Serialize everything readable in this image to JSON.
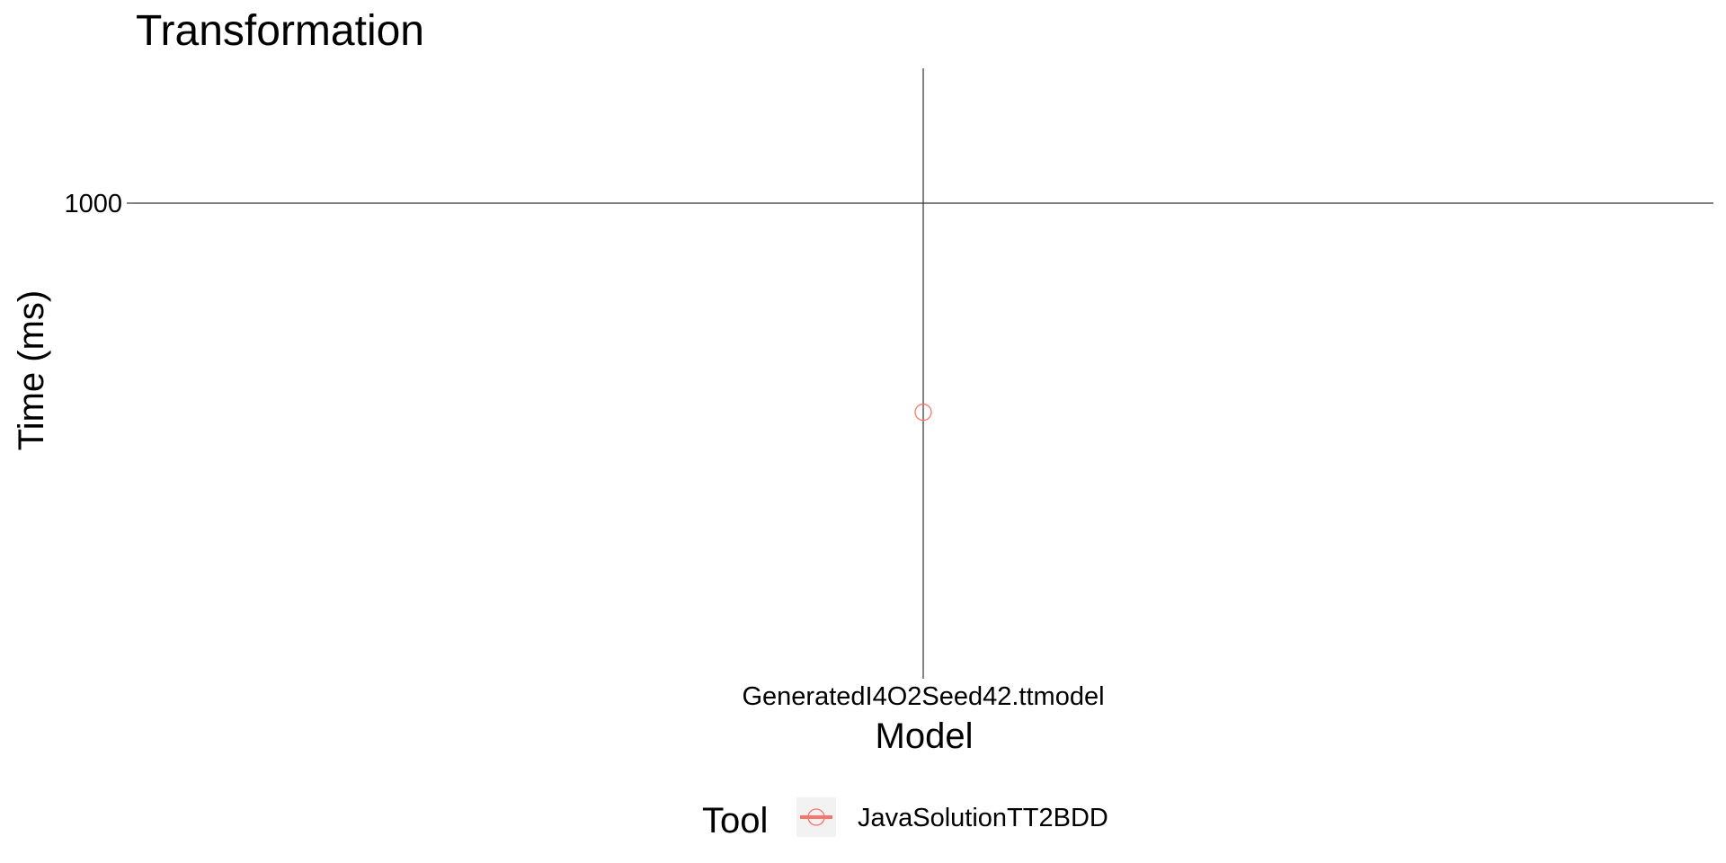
{
  "chart_data": {
    "type": "scatter",
    "title": "Transformation",
    "xlabel": "Model",
    "ylabel": "Time (ms)",
    "y_scale": "log10",
    "y_ticks": [
      1000
    ],
    "y_tick_labels": [
      "1000"
    ],
    "categories": [
      "GeneratedI4O2Seed42.ttmodel"
    ],
    "grid": true,
    "legend": {
      "title": "Tool",
      "position": "bottom",
      "entries": [
        "JavaSolutionTT2BDD"
      ]
    },
    "series": [
      {
        "name": "JavaSolutionTT2BDD",
        "color": "#F8766D",
        "marker": "open-circle",
        "points": [
          {
            "x": "GeneratedI4O2Seed42.ttmodel",
            "y": 650
          }
        ]
      }
    ]
  }
}
